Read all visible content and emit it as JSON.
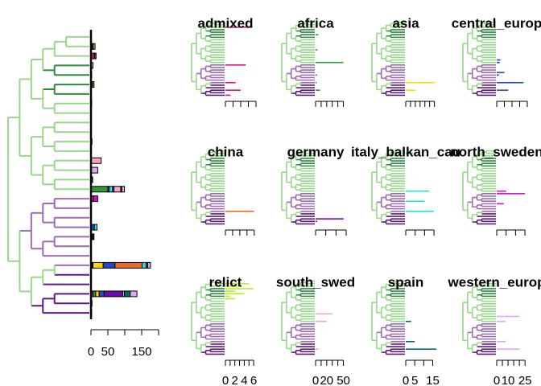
{
  "chart_data": [
    {
      "type": "stacked_bar",
      "xlim": [
        0,
        230
      ],
      "xticks": [
        0,
        50,
        {
          "value": 100,
          "label": null
        },
        150,
        {
          "value": 200,
          "label": null
        }
      ]
    },
    {
      "type": "bar",
      "title": "admixed",
      "color": "#e0117f",
      "values": [
        0,
        0,
        10,
        0,
        0,
        0,
        0,
        0,
        0,
        0,
        0,
        0,
        0,
        0,
        0,
        0,
        0,
        8,
        0,
        0,
        0,
        0,
        0,
        0,
        4,
        0,
        0,
        6,
        0,
        2
      ],
      "xlim": [
        0,
        12
      ],
      "xticks": [
        {
          "value": 0,
          "label": null
        },
        {
          "value": 3,
          "label": null
        },
        {
          "value": 6,
          "label": null
        },
        {
          "value": 9,
          "label": null
        },
        {
          "value": 12,
          "label": null
        }
      ]
    },
    {
      "type": "bar",
      "title": "africa",
      "color": "#2e9a3a",
      "values": [
        0,
        4,
        2,
        0,
        0,
        5,
        0,
        0,
        0,
        0,
        0,
        3,
        0,
        0,
        0,
        0,
        50,
        0,
        0,
        0,
        0,
        3,
        0,
        0,
        2,
        0,
        0,
        8,
        0,
        0
      ],
      "xlim": [
        0,
        55
      ],
      "xticks": [
        {
          "value": 0,
          "label": null
        },
        {
          "value": 10,
          "label": null
        },
        {
          "value": 20,
          "label": null
        },
        {
          "value": 30,
          "label": null
        },
        {
          "value": 40,
          "label": null
        },
        {
          "value": 50,
          "label": null
        }
      ]
    },
    {
      "type": "bar",
      "title": "asia",
      "color": "#ffd700",
      "values": [
        0,
        0,
        0,
        0,
        0,
        0,
        0,
        0,
        0,
        0,
        0,
        0,
        0,
        0,
        0,
        0,
        0,
        0,
        0,
        0,
        0,
        0,
        0,
        0,
        30,
        0,
        0,
        10,
        0,
        0
      ],
      "xlim": [
        0,
        32
      ],
      "xticks": [
        {
          "value": 0,
          "label": null
        },
        {
          "value": 5,
          "label": null
        },
        {
          "value": 10,
          "label": null
        },
        {
          "value": 15,
          "label": null
        },
        {
          "value": 20,
          "label": null
        },
        {
          "value": 25,
          "label": null
        },
        {
          "value": 30,
          "label": null
        }
      ]
    },
    {
      "type": "bar",
      "title": "central_europ",
      "color": "#2446c8",
      "values": [
        0,
        0,
        0,
        0,
        0,
        0,
        0,
        0,
        0,
        0,
        0,
        0,
        0,
        0,
        0,
        5,
        4,
        0,
        0,
        0,
        10,
        3,
        0,
        0,
        35,
        0,
        0,
        15,
        0,
        0
      ],
      "xlim": [
        0,
        40
      ],
      "xticks": [
        {
          "value": 0,
          "label": null
        },
        {
          "value": 10,
          "label": null
        },
        {
          "value": 20,
          "label": null
        },
        {
          "value": 30,
          "label": null
        },
        {
          "value": 40,
          "label": null
        }
      ]
    },
    {
      "type": "bar",
      "title": "china",
      "color": "#f06a1e",
      "values": [
        0,
        0,
        0,
        0,
        0,
        0,
        0,
        0,
        0,
        0,
        0,
        0,
        0,
        0,
        0,
        0,
        0,
        0,
        0,
        0,
        0,
        0,
        0,
        0,
        80,
        0,
        0,
        0,
        0,
        0
      ],
      "xlim": [
        0,
        85
      ],
      "xticks": [
        {
          "value": 0,
          "label": null
        },
        {
          "value": 20,
          "label": null
        },
        {
          "value": 40,
          "label": null
        },
        {
          "value": 60,
          "label": null
        },
        {
          "value": 80,
          "label": null
        }
      ]
    },
    {
      "type": "bar",
      "title": "germany",
      "color": "#6a0dad",
      "values": [
        0,
        0,
        0,
        0,
        0,
        0,
        0,
        0,
        0,
        0,
        0,
        0,
        0,
        0,
        0,
        0,
        0,
        0,
        0,
        0,
        0,
        0,
        0,
        0,
        0,
        0,
        0,
        55,
        3,
        0
      ],
      "xlim": [
        0,
        60
      ],
      "xticks": [
        {
          "value": 0,
          "label": null
        },
        {
          "value": 20,
          "label": null
        },
        {
          "value": 40,
          "label": null
        },
        {
          "value": 60,
          "label": null
        }
      ]
    },
    {
      "type": "bar",
      "title": "italy_balkan_cau",
      "color": "#22e0e0",
      "values": [
        0,
        3,
        0,
        0,
        0,
        0,
        0,
        0,
        0,
        0,
        0,
        0,
        0,
        0,
        0,
        0,
        10,
        0,
        0,
        0,
        8,
        0,
        0,
        0,
        12,
        0,
        0,
        0,
        0,
        0
      ],
      "xlim": [
        0,
        13
      ],
      "xticks": [
        {
          "value": 0,
          "label": null
        },
        {
          "value": 4,
          "label": null
        },
        {
          "value": 8,
          "label": null
        },
        {
          "value": 12,
          "label": null
        }
      ]
    },
    {
      "type": "bar",
      "title": "north_sweden",
      "color": "#d010d0",
      "values": [
        0,
        0,
        0,
        0,
        0,
        0,
        0,
        0,
        0,
        0,
        0,
        0,
        0,
        0,
        0,
        0,
        4,
        12,
        0,
        0,
        0,
        3,
        0,
        0,
        0,
        0,
        0,
        0,
        0,
        0
      ],
      "xlim": [
        0,
        13
      ],
      "xticks": [
        {
          "value": 0,
          "label": null
        },
        {
          "value": 4,
          "label": null
        },
        {
          "value": 8,
          "label": null
        },
        {
          "value": 12,
          "label": null
        }
      ]
    },
    {
      "type": "bar",
      "title": "relict",
      "color": "#b4f02a",
      "values": [
        0,
        5,
        3,
        6,
        2,
        4,
        1,
        2,
        0,
        0,
        0,
        0,
        0,
        0,
        0,
        0,
        0,
        0,
        0,
        0,
        0,
        0,
        0,
        0,
        0,
        0,
        0,
        0,
        0,
        0
      ],
      "xlim": [
        0,
        6.5
      ],
      "xticks": [
        0,
        {
          "value": 1,
          "label": null
        },
        2,
        {
          "value": 3,
          "label": null
        },
        4,
        {
          "value": 5,
          "label": null
        },
        6
      ]
    },
    {
      "type": "bar",
      "title": "south_swed",
      "color": "#f4a6c4",
      "values": [
        0,
        0,
        0,
        0,
        0,
        0,
        0,
        0,
        0,
        0,
        0,
        0,
        0,
        30,
        0,
        0,
        20,
        0,
        0,
        0,
        0,
        0,
        0,
        0,
        0,
        0,
        0,
        5,
        0,
        0
      ],
      "xlim": [
        0,
        55
      ],
      "xticks": [
        0,
        {
          "value": 10,
          "label": null
        },
        20,
        {
          "value": 30,
          "label": null
        },
        {
          "value": 40,
          "label": null
        },
        50
      ]
    },
    {
      "type": "bar",
      "title": "spain",
      "color": "#006a62",
      "values": [
        0,
        0,
        0,
        0,
        0,
        0,
        0,
        0,
        0,
        0,
        0,
        0,
        0,
        0,
        0,
        0,
        3,
        0,
        0,
        0,
        0,
        0,
        0,
        0,
        5,
        0,
        0,
        17,
        0,
        0
      ],
      "xlim": [
        0,
        17
      ],
      "xticks": [
        0,
        5,
        {
          "value": 10,
          "label": null
        },
        15
      ]
    },
    {
      "type": "bar",
      "title": "western_europ",
      "color": "#e2a6f2",
      "values": [
        0,
        0,
        0,
        0,
        0,
        0,
        0,
        0,
        0,
        0,
        0,
        0,
        0,
        0,
        20,
        0,
        8,
        0,
        0,
        0,
        0,
        0,
        0,
        0,
        8,
        0,
        0,
        20,
        0,
        0
      ],
      "xlim": [
        0,
        27
      ],
      "xticks": [
        0,
        {
          "value": 5,
          "label": null
        },
        10,
        {
          "value": 15,
          "label": null
        },
        {
          "value": 20,
          "label": null
        },
        25
      ]
    }
  ]
}
